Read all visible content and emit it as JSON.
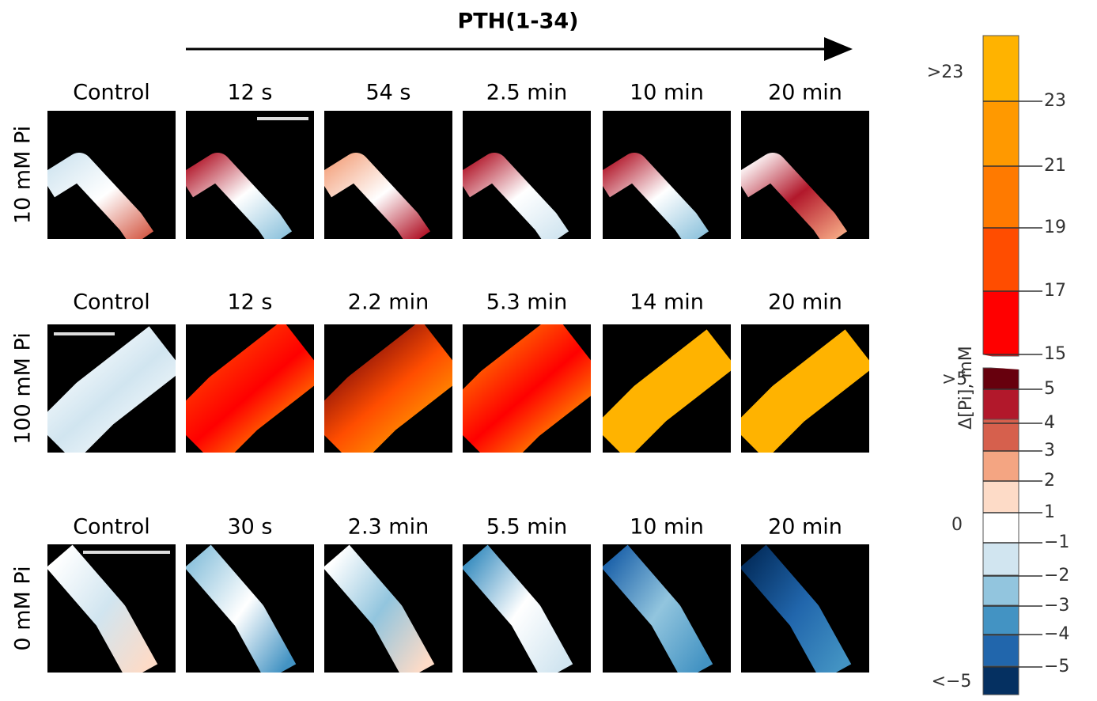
{
  "header": {
    "title": "PTH(1-34)"
  },
  "rows": [
    {
      "label": "10 mM Pi",
      "columns": [
        "Control",
        "12 s",
        "54 s",
        "2.5 min",
        "10 min",
        "20 min"
      ]
    },
    {
      "label": "100 mM Pi",
      "columns": [
        "Control",
        "12 s",
        "2.2 min",
        "5.3 min",
        "14 min",
        "20 min"
      ]
    },
    {
      "label": "0 mM Pi",
      "columns": [
        "Control",
        "30 s",
        "2.3 min",
        "5.5 min",
        "10 min",
        "20 min"
      ]
    }
  ],
  "colorbar": {
    "label": "Δ[Pi], mM",
    "upper_top": ">23",
    "upper_ticks": [
      "23",
      "21",
      "19",
      "17",
      "15"
    ],
    "lower_top": ">5",
    "lower_ticks": [
      "5",
      "4",
      "3",
      "2",
      "1"
    ],
    "zero": "0",
    "negative_ticks": [
      "−1",
      "−2",
      "−3",
      "−4",
      "−5"
    ],
    "lower_bottom": "<−5"
  }
}
